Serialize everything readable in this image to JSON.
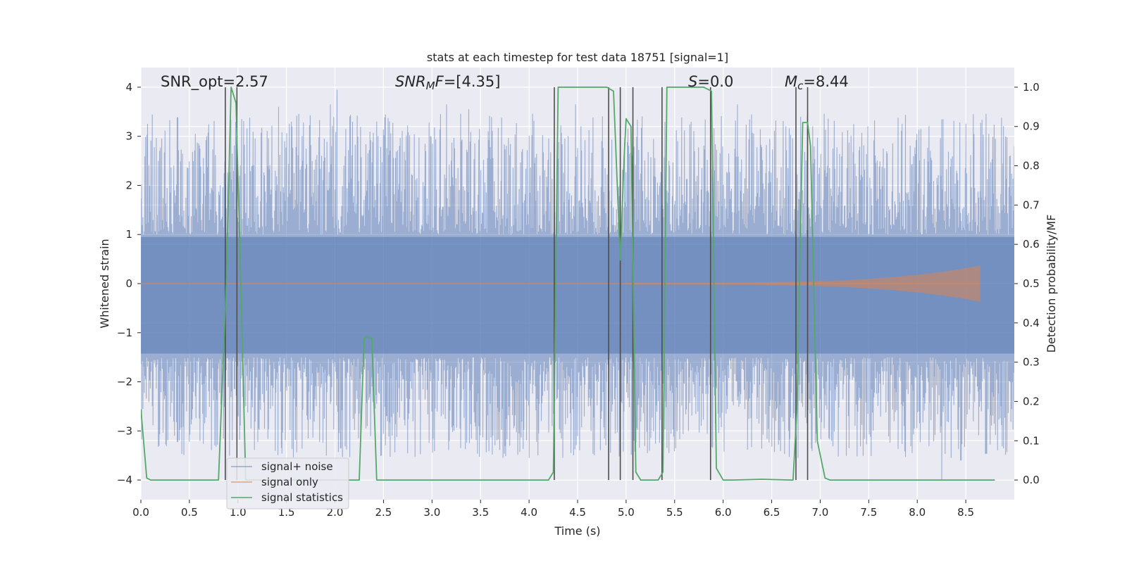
{
  "chart_data": {
    "type": "line",
    "title": "stats at each timestep for test data 18751 [signal=1]",
    "xlabel": "Time (s)",
    "ylabel_left": "Whitened strain",
    "ylabel_right": "Detection probability/MF",
    "xlim": [
      0.0,
      9.0
    ],
    "ylim_left": [
      -4.4,
      4.4
    ],
    "ylim_right": [
      -0.05,
      1.05
    ],
    "xticks": [
      "0.0",
      "0.5",
      "1.0",
      "1.5",
      "2.0",
      "2.5",
      "3.0",
      "3.5",
      "4.0",
      "4.5",
      "5.0",
      "5.5",
      "6.0",
      "6.5",
      "7.0",
      "7.5",
      "8.0",
      "8.5"
    ],
    "xtick_values": [
      0.0,
      0.5,
      1.0,
      1.5,
      2.0,
      2.5,
      3.0,
      3.5,
      4.0,
      4.5,
      5.0,
      5.5,
      6.0,
      6.5,
      7.0,
      7.5,
      8.0,
      8.5
    ],
    "yticks_left": [
      "4",
      "3",
      "2",
      "1",
      "0",
      "−1",
      "−2",
      "−3",
      "−4"
    ],
    "ytick_values_left": [
      4,
      3,
      2,
      1,
      0,
      -1,
      -2,
      -3,
      -4
    ],
    "yticks_right": [
      "1.0",
      "0.9",
      "0.8",
      "0.7",
      "0.6",
      "0.5",
      "0.4",
      "0.3",
      "0.2",
      "0.1",
      "0.0"
    ],
    "ytick_values_right": [
      1.0,
      0.9,
      0.8,
      0.7,
      0.6,
      0.5,
      0.4,
      0.3,
      0.2,
      0.1,
      0.0
    ],
    "annotations": {
      "snr_opt": "SNR_opt=2.57",
      "snr_mf_main": "SNR",
      "snr_mf_sub": "M",
      "snr_mf_rest": "F=[4.35]",
      "s_main": "S",
      "s_rest": "=0.0",
      "mc_main": "M",
      "mc_sub": "c",
      "mc_rest": "=8.44"
    },
    "legend": {
      "location": "lower-left",
      "entries": [
        "signal+ noise",
        "signal only",
        "signal statistics"
      ]
    },
    "series": [
      {
        "name": "signal+ noise",
        "axis": "left",
        "style": "noisy-filled",
        "color": "#4c72b0",
        "envelope_upper_range": [
          1.0,
          4.0
        ],
        "envelope_lower_range": [
          -4.0,
          -1.5
        ],
        "peaks": [
          {
            "x": 2.02,
            "y": 3.95
          },
          {
            "x": 1.95,
            "y": 3.65
          },
          {
            "x": 1.42,
            "y": 3.6
          },
          {
            "x": 3.15,
            "y": 3.65
          },
          {
            "x": 3.38,
            "y": 3.55
          },
          {
            "x": 4.48,
            "y": 3.65
          },
          {
            "x": 6.15,
            "y": 3.65
          },
          {
            "x": 8.58,
            "y": 3.45
          },
          {
            "x": 2.43,
            "y": 3.3
          },
          {
            "x": 8.25,
            "y": -4.0
          },
          {
            "x": 8.45,
            "y": -3.6
          },
          {
            "x": 4.0,
            "y": -3.55
          },
          {
            "x": 7.95,
            "y": -3.45
          },
          {
            "x": 3.8,
            "y": -3.3
          },
          {
            "x": 5.08,
            "y": -3.2
          }
        ]
      },
      {
        "name": "signal only",
        "axis": "left",
        "style": "chirp",
        "color": "#dd8452",
        "start_x": 5.0,
        "end_x": 8.65,
        "max_amplitude": 0.35
      },
      {
        "name": "signal statistics",
        "axis": "right",
        "style": "line",
        "color": "#55a868",
        "x": [
          0.0,
          0.06,
          0.1,
          0.2,
          0.4,
          0.6,
          0.8,
          0.88,
          0.93,
          0.98,
          1.03,
          1.08,
          1.14,
          1.2,
          2.25,
          2.3,
          2.33,
          2.38,
          2.43,
          2.5,
          4.2,
          4.25,
          4.3,
          4.5,
          4.8,
          4.87,
          4.94,
          4.98,
          5.0,
          5.05,
          5.1,
          5.15,
          5.25,
          5.33,
          5.38,
          5.42,
          5.5,
          5.8,
          5.88,
          5.93,
          6.0,
          6.1,
          6.4,
          6.7,
          6.72,
          6.76,
          6.82,
          6.87,
          6.9,
          6.97,
          7.05,
          7.1,
          7.2,
          8.8
        ],
        "y": [
          0.18,
          0.005,
          0.0,
          0.0,
          0.0,
          0.0,
          0.0,
          0.5,
          1.0,
          0.96,
          0.5,
          0.0,
          0.0,
          0.0,
          0.0,
          0.36,
          0.365,
          0.36,
          0.0,
          0.0,
          0.0,
          0.02,
          1.0,
          1.0,
          1.0,
          0.99,
          0.56,
          0.82,
          0.92,
          0.9,
          0.02,
          0.0,
          0.0,
          0.0,
          0.02,
          1.0,
          1.0,
          1.0,
          0.99,
          0.03,
          0.0,
          0.0,
          0.002,
          0.0,
          0.0,
          0.18,
          0.91,
          0.91,
          0.85,
          0.1,
          0.005,
          0.0,
          0.0,
          0.0
        ]
      }
    ],
    "vertical_lines_x": [
      0.87,
      0.99,
      4.26,
      4.82,
      4.94,
      5.07,
      5.37,
      5.87,
      6.75,
      6.87
    ],
    "grid": true,
    "colors": {
      "plot_background": "#eaeaf2",
      "grid": "#ffffff",
      "vline": "#4d4d4d"
    }
  }
}
